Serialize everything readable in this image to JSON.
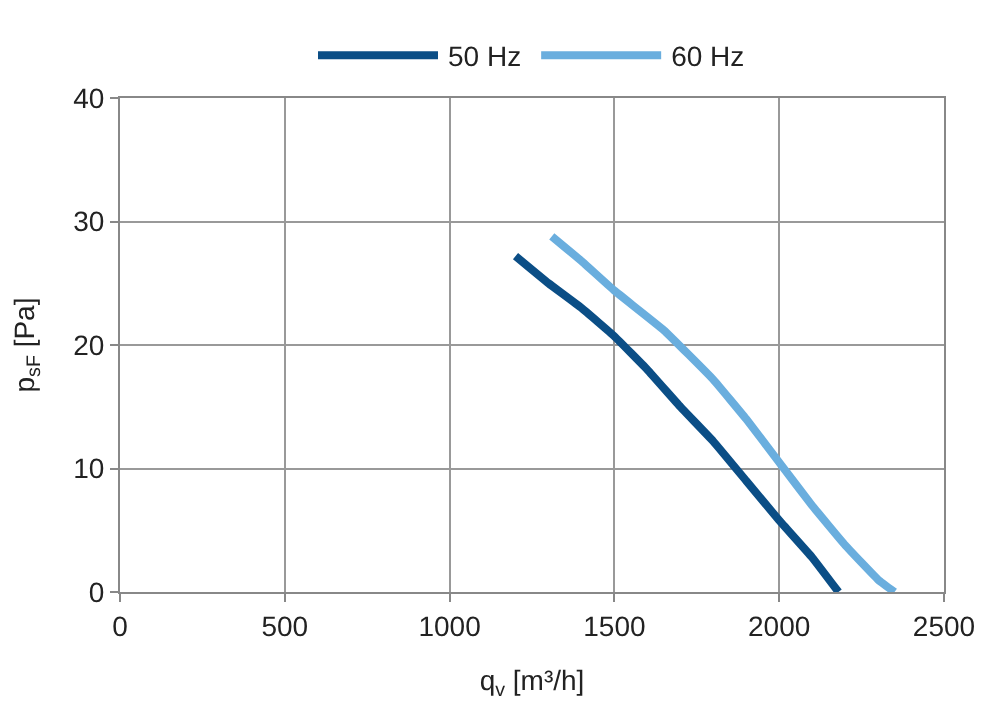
{
  "chart_data": {
    "type": "line",
    "xlabel": "q$_{v}$ [m³/h]",
    "ylabel": "p$_{sF}$ [Pa]",
    "xlim": [
      0,
      2500
    ],
    "xticks": [
      0,
      500,
      1000,
      1500,
      2000,
      2500
    ],
    "ylim": [
      0,
      40
    ],
    "yticks": [
      0,
      10,
      20,
      30,
      40
    ],
    "grid": true,
    "legend": "top",
    "marker": "none",
    "line_style": "solid",
    "series": [
      {
        "name": "50 Hz",
        "color": "#0b4e86",
        "x": [
          1200,
          1300,
          1400,
          1500,
          1600,
          1700,
          1800,
          1900,
          2000,
          2100,
          2180
        ],
        "values": [
          27.2,
          25,
          23,
          20.7,
          18,
          15,
          12.2,
          9,
          5.8,
          2.8,
          0
        ]
      },
      {
        "name": "60 Hz",
        "color": "#6aaede",
        "x": [
          1310,
          1400,
          1500,
          1650,
          1800,
          1900,
          2000,
          2100,
          2200,
          2300,
          2350
        ],
        "values": [
          28.8,
          26.8,
          24.4,
          21.2,
          17.2,
          14,
          10.5,
          7,
          3.8,
          1,
          0
        ]
      }
    ]
  }
}
